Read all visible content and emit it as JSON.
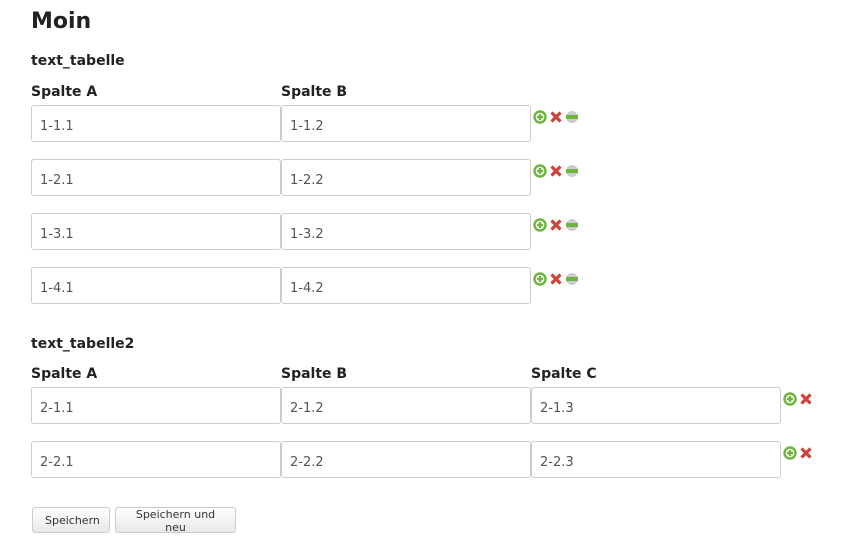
{
  "title": "Moin",
  "tables": [
    {
      "name": "text_tabelle",
      "columns": [
        "Spalte A",
        "Spalte B"
      ],
      "rows": [
        [
          "1-1.1",
          "1-1.2"
        ],
        [
          "1-2.1",
          "1-2.2"
        ],
        [
          "1-3.1",
          "1-3.2"
        ],
        [
          "1-4.1",
          "1-4.2"
        ]
      ],
      "row_actions": [
        "add-icon",
        "delete-icon",
        "remove-icon"
      ]
    },
    {
      "name": "text_tabelle2",
      "columns": [
        "Spalte A",
        "Spalte B",
        "Spalte C"
      ],
      "rows": [
        [
          "2-1.1",
          "2-1.2",
          "2-1.3"
        ],
        [
          "2-2.1",
          "2-2.2",
          "2-2.3"
        ]
      ],
      "row_actions": [
        "add-icon",
        "delete-icon"
      ]
    }
  ],
  "buttons": {
    "save": "Speichern",
    "save_new": "Speichern und neu"
  },
  "colors": {
    "add": "#6fb43f",
    "delete": "#d0413a",
    "remove": "#6fb43f"
  }
}
